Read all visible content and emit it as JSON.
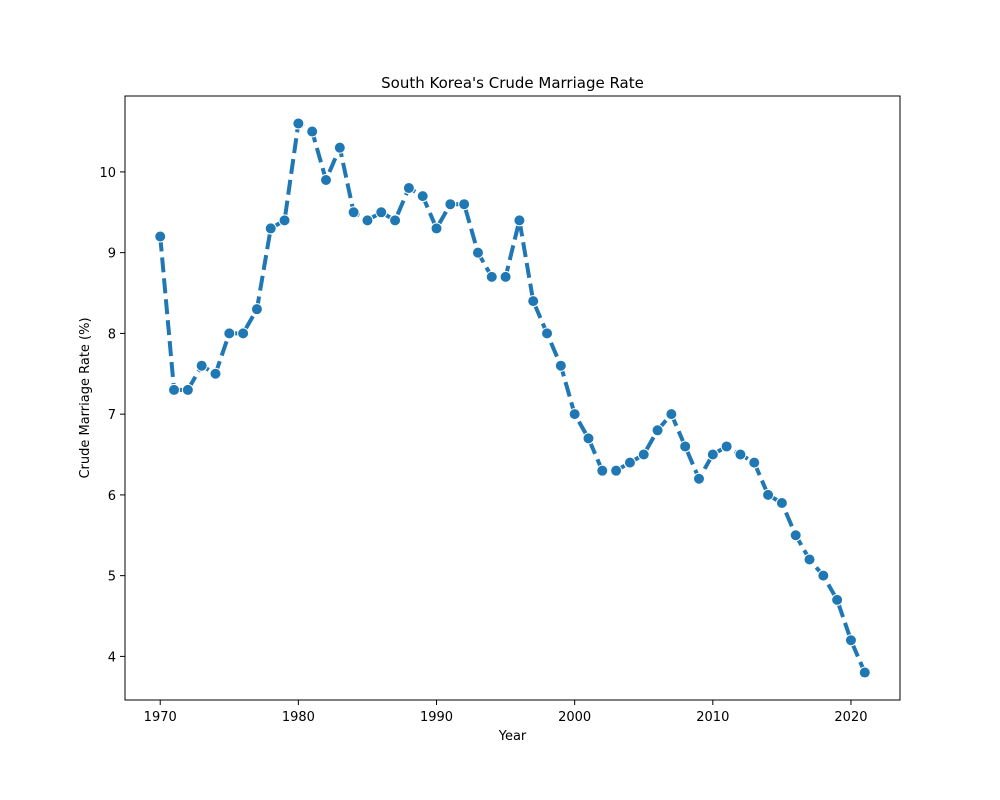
{
  "chart_data": {
    "type": "line",
    "title": "South Korea's Crude Marriage Rate",
    "xlabel": "Year",
    "ylabel": "Crude Marriage Rate (%)",
    "xlim": [
      1967.45,
      2023.55
    ],
    "ylim": [
      3.46,
      10.94
    ],
    "xticks": [
      1970,
      1980,
      1990,
      2000,
      2010,
      2020
    ],
    "yticks": [
      4,
      5,
      6,
      7,
      8,
      9,
      10
    ],
    "grid": false,
    "legend": "none",
    "series": [
      {
        "color": "#1f77b4",
        "line_style": "dashed",
        "marker": "circle",
        "x": [
          1970,
          1971,
          1972,
          1973,
          1974,
          1975,
          1976,
          1977,
          1978,
          1979,
          1980,
          1981,
          1982,
          1983,
          1984,
          1985,
          1986,
          1987,
          1988,
          1989,
          1990,
          1991,
          1992,
          1993,
          1994,
          1995,
          1996,
          1997,
          1998,
          1999,
          2000,
          2001,
          2002,
          2003,
          2004,
          2005,
          2006,
          2007,
          2008,
          2009,
          2010,
          2011,
          2012,
          2013,
          2014,
          2015,
          2016,
          2017,
          2018,
          2019,
          2020,
          2021
        ],
        "y": [
          9.2,
          7.3,
          7.3,
          7.6,
          7.5,
          8.0,
          8.0,
          8.3,
          9.3,
          9.4,
          10.6,
          10.5,
          9.9,
          10.3,
          9.5,
          9.4,
          9.5,
          9.4,
          9.8,
          9.7,
          9.3,
          9.6,
          9.6,
          9.0,
          8.7,
          8.7,
          9.4,
          8.4,
          8.0,
          7.6,
          7.0,
          6.7,
          6.3,
          6.3,
          6.4,
          6.5,
          6.8,
          7.0,
          6.6,
          6.2,
          6.5,
          6.6,
          6.5,
          6.4,
          6.0,
          5.9,
          5.5,
          5.2,
          5.0,
          4.7,
          4.2,
          3.8
        ]
      }
    ]
  }
}
